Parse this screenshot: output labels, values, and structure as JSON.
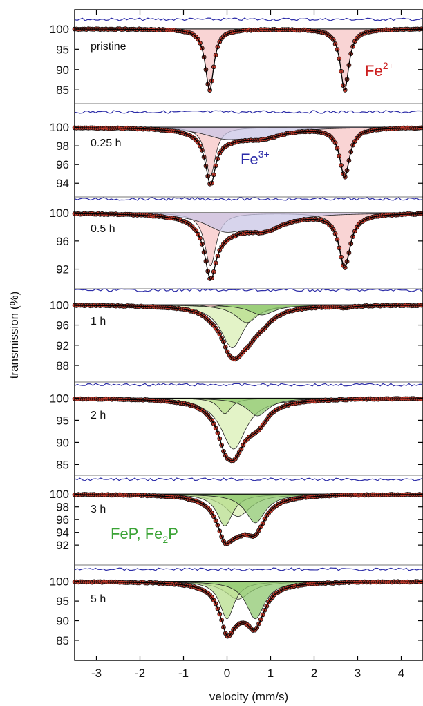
{
  "chart_data": {
    "type": "scatter",
    "title": "",
    "xlabel": "velocity  (mm/s)",
    "ylabel": "transmission  (%)",
    "xlim": [
      -3.5,
      4.5
    ],
    "x_ticks": [
      -3,
      -2,
      -1,
      0,
      1,
      2,
      3,
      4
    ],
    "colors": {
      "data_points": "#c0392b",
      "fit_total": "#000000",
      "residual": "#2c2ca8",
      "fe2": "#f7c6c6",
      "fe3": "#c9c6e6",
      "phosphide_light": "#d9efb4",
      "phosphide_mid": "#b7dd8c",
      "phosphide_dark": "#8fc870",
      "label_fe2": "#cc1f1f",
      "label_fe3": "#2a2aa8",
      "label_phosphide": "#3aa335"
    },
    "annotations": {
      "fe2_base": "Fe",
      "fe2_sup": "2+",
      "fe3_base": "Fe",
      "fe3_sup": "3+",
      "phos_part1": "FeP, Fe",
      "phos_sub": "2",
      "phos_part2": "P"
    },
    "panels": [
      {
        "label": "pristine",
        "ylim": [
          83,
          101
        ],
        "y_ticks": [
          100,
          95,
          90,
          85
        ],
        "components": [
          {
            "name": "Fe2+",
            "fill": "fe2",
            "lines": [
              {
                "center": -0.4,
                "width": 0.12,
                "depth": 15
              },
              {
                "center": 2.7,
                "width": 0.12,
                "depth": 15
              }
            ]
          }
        ]
      },
      {
        "label": "0.25 h",
        "ylim": [
          93.5,
          100.6
        ],
        "y_ticks": [
          100,
          98,
          96,
          94
        ],
        "components": [
          {
            "name": "Fe2+",
            "fill": "fe2",
            "lines": [
              {
                "center": -0.38,
                "width": 0.14,
                "depth": 5.2
              },
              {
                "center": 2.7,
                "width": 0.14,
                "depth": 5.2
              }
            ]
          },
          {
            "name": "Fe3+",
            "fill": "fe3",
            "lines": [
              {
                "center": -0.05,
                "width": 0.6,
                "depth": 1.0
              },
              {
                "center": 0.8,
                "width": 0.6,
                "depth": 0.9
              }
            ]
          }
        ]
      },
      {
        "label": "0.5 h",
        "ylim": [
          89.5,
          100.8
        ],
        "y_ticks": [
          100,
          96,
          92
        ],
        "components": [
          {
            "name": "Fe2+",
            "fill": "fe2",
            "lines": [
              {
                "center": -0.38,
                "width": 0.16,
                "depth": 7.5
              },
              {
                "center": 2.7,
                "width": 0.16,
                "depth": 7.5
              }
            ]
          },
          {
            "name": "Fe3+",
            "fill": "fe3",
            "lines": [
              {
                "center": -0.05,
                "width": 0.55,
                "depth": 2.2
              },
              {
                "center": 0.85,
                "width": 0.55,
                "depth": 2.0
              }
            ]
          }
        ]
      },
      {
        "label": "1 h",
        "ylim": [
          86.5,
          101
        ],
        "y_ticks": [
          100,
          96,
          92,
          88
        ],
        "components": [
          {
            "name": "phosphide-1",
            "fill": "phosphide_light",
            "lines": [
              {
                "center": 0.12,
                "width": 0.32,
                "depth": 8.5
              }
            ]
          },
          {
            "name": "phosphide-2",
            "fill": "phosphide_mid",
            "lines": [
              {
                "center": 0.45,
                "width": 0.32,
                "depth": 3.5
              }
            ]
          },
          {
            "name": "phosphide-3",
            "fill": "phosphide_dark",
            "lines": [
              {
                "center": 0.8,
                "width": 0.35,
                "depth": 2.0
              }
            ]
          },
          {
            "name": "Fe2+ residual",
            "fill": "fe2",
            "lines": [
              {
                "center": -0.38,
                "width": 0.15,
                "depth": 0.4
              },
              {
                "center": 2.7,
                "width": 0.15,
                "depth": 0.4
              }
            ]
          }
        ]
      },
      {
        "label": "2 h",
        "ylim": [
          83.5,
          101
        ],
        "y_ticks": [
          100,
          95,
          90,
          85
        ],
        "components": [
          {
            "name": "phosphide-1",
            "fill": "phosphide_light",
            "lines": [
              {
                "center": 0.15,
                "width": 0.35,
                "depth": 11.5
              }
            ]
          },
          {
            "name": "phosphide-2",
            "fill": "phosphide_mid",
            "lines": [
              {
                "center": -0.05,
                "width": 0.18,
                "depth": 3.5
              }
            ]
          },
          {
            "name": "phosphide-3",
            "fill": "phosphide_dark",
            "lines": [
              {
                "center": 0.7,
                "width": 0.3,
                "depth": 4.0
              }
            ]
          }
        ]
      },
      {
        "label": "3 h",
        "ylim": [
          90.5,
          101
        ],
        "y_ticks": [
          100,
          98,
          96,
          94,
          92
        ],
        "components": [
          {
            "name": "phosphide-1",
            "fill": "phosphide_light",
            "lines": [
              {
                "center": 0.25,
                "width": 0.35,
                "depth": 3.5
              }
            ]
          },
          {
            "name": "phosphide-2",
            "fill": "phosphide_mid",
            "lines": [
              {
                "center": -0.05,
                "width": 0.22,
                "depth": 5.0
              }
            ]
          },
          {
            "name": "phosphide-3",
            "fill": "phosphide_dark",
            "lines": [
              {
                "center": 0.65,
                "width": 0.28,
                "depth": 4.5
              }
            ]
          }
        ]
      },
      {
        "label": "5 h",
        "ylim": [
          82,
          101
        ],
        "y_ticks": [
          100,
          95,
          90,
          85
        ],
        "components": [
          {
            "name": "phosphide-1",
            "fill": "phosphide_light",
            "lines": [
              {
                "center": 0.25,
                "width": 0.35,
                "depth": 4.5
              }
            ]
          },
          {
            "name": "phosphide-2",
            "fill": "phosphide_mid",
            "lines": [
              {
                "center": 0.0,
                "width": 0.2,
                "depth": 9.5
              }
            ]
          },
          {
            "name": "phosphide-3",
            "fill": "phosphide_dark",
            "lines": [
              {
                "center": 0.65,
                "width": 0.26,
                "depth": 9.5
              }
            ]
          }
        ]
      }
    ]
  }
}
